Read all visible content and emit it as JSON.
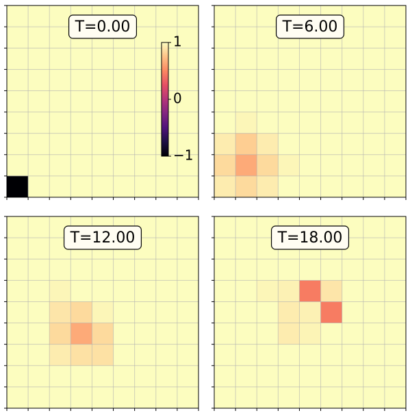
{
  "chart_data": [
    {
      "type": "heatmap",
      "title": "T=0.00",
      "cmap": "magma",
      "clim": [
        -1,
        1
      ],
      "colorbar_ticks": [
        {
          "value": 1,
          "label": "1"
        },
        {
          "value": 0,
          "label": "0"
        },
        {
          "value": -1,
          "label": "−1"
        }
      ],
      "xlim": [
        0,
        9
      ],
      "ylim": [
        0,
        9
      ],
      "xticks": [
        0,
        1,
        2,
        3,
        4,
        5,
        6,
        7,
        8,
        9
      ],
      "yticks": [
        0,
        1,
        2,
        3,
        4,
        5,
        6,
        7,
        8,
        9
      ],
      "grid": true,
      "z": [
        [
          1,
          1,
          1,
          1,
          1,
          1,
          1,
          1,
          1
        ],
        [
          1,
          1,
          1,
          1,
          1,
          1,
          1,
          1,
          1
        ],
        [
          1,
          1,
          1,
          1,
          1,
          1,
          1,
          1,
          1
        ],
        [
          1,
          1,
          1,
          1,
          1,
          1,
          1,
          1,
          1
        ],
        [
          1,
          1,
          1,
          1,
          1,
          1,
          1,
          1,
          1
        ],
        [
          1,
          1,
          1,
          1,
          1,
          1,
          1,
          1,
          1
        ],
        [
          1,
          1,
          1,
          1,
          1,
          1,
          1,
          1,
          1
        ],
        [
          1,
          1,
          1,
          1,
          1,
          1,
          1,
          1,
          1
        ],
        [
          -1,
          1,
          1,
          1,
          1,
          1,
          1,
          1,
          1
        ]
      ]
    },
    {
      "type": "heatmap",
      "title": "T=6.00",
      "cmap": "magma",
      "clim": [
        -1,
        1
      ],
      "xlim": [
        0,
        9
      ],
      "ylim": [
        0,
        9
      ],
      "xticks": [
        0,
        1,
        2,
        3,
        4,
        5,
        6,
        7,
        8,
        9
      ],
      "yticks": [
        0,
        1,
        2,
        3,
        4,
        5,
        6,
        7,
        8,
        9
      ],
      "grid": true,
      "z": [
        [
          1,
          1,
          1,
          1,
          1,
          1,
          1,
          1,
          1
        ],
        [
          1,
          1,
          1,
          1,
          1,
          1,
          1,
          1,
          1
        ],
        [
          1,
          1,
          1,
          1,
          1,
          1,
          1,
          1,
          1
        ],
        [
          1,
          1,
          1,
          1,
          1,
          1,
          1,
          1,
          1
        ],
        [
          1,
          1,
          1,
          1,
          1,
          1,
          1,
          1,
          1
        ],
        [
          1,
          0.97,
          1,
          1,
          1,
          1,
          1,
          1,
          1
        ],
        [
          0.93,
          0.8,
          0.93,
          1,
          1,
          1,
          1,
          1,
          1
        ],
        [
          0.85,
          0.65,
          0.85,
          0.97,
          1,
          1,
          1,
          1,
          1
        ],
        [
          0.93,
          0.85,
          0.93,
          1,
          1,
          1,
          1,
          1,
          1
        ]
      ]
    },
    {
      "type": "heatmap",
      "title": "T=12.00",
      "cmap": "magma",
      "clim": [
        -1,
        1
      ],
      "xlim": [
        0,
        9
      ],
      "ylim": [
        0,
        9
      ],
      "xticks": [
        0,
        1,
        2,
        3,
        4,
        5,
        6,
        7,
        8,
        9
      ],
      "yticks": [
        0,
        1,
        2,
        3,
        4,
        5,
        6,
        7,
        8,
        9
      ],
      "grid": true,
      "z": [
        [
          1,
          1,
          1,
          1,
          1,
          1,
          1,
          1,
          1
        ],
        [
          1,
          1,
          1,
          1,
          1,
          1,
          1,
          1,
          1
        ],
        [
          1,
          1,
          1,
          1,
          1,
          1,
          1,
          1,
          1
        ],
        [
          1,
          1,
          0.97,
          1,
          1,
          1,
          1,
          1,
          1
        ],
        [
          1,
          1,
          0.9,
          0.85,
          0.97,
          1,
          1,
          1,
          1
        ],
        [
          1,
          1,
          0.85,
          0.65,
          0.85,
          1,
          1,
          1,
          1
        ],
        [
          1,
          1,
          0.93,
          0.88,
          0.88,
          1,
          1,
          1,
          1
        ],
        [
          1,
          1,
          1,
          1,
          1,
          1,
          1,
          1,
          1
        ],
        [
          1,
          1,
          1,
          1,
          1,
          1,
          1,
          1,
          1
        ]
      ]
    },
    {
      "type": "heatmap",
      "title": "T=18.00",
      "cmap": "magma",
      "clim": [
        -1,
        1
      ],
      "xlim": [
        0,
        9
      ],
      "ylim": [
        0,
        9
      ],
      "xticks": [
        0,
        1,
        2,
        3,
        4,
        5,
        6,
        7,
        8,
        9
      ],
      "yticks": [
        0,
        1,
        2,
        3,
        4,
        5,
        6,
        7,
        8,
        9
      ],
      "grid": true,
      "z": [
        [
          1,
          1,
          1,
          1,
          1,
          1,
          1,
          1,
          1
        ],
        [
          1,
          1,
          1,
          1,
          1,
          1,
          1,
          1,
          1
        ],
        [
          1,
          1,
          1,
          1,
          1,
          1,
          1,
          1,
          1
        ],
        [
          1,
          1,
          0.97,
          0.95,
          0.45,
          0.9,
          1,
          1,
          1
        ],
        [
          1,
          1,
          1,
          0.93,
          0.95,
          0.45,
          1,
          1,
          1
        ],
        [
          1,
          1,
          1,
          0.93,
          0.96,
          1,
          1,
          1,
          1
        ],
        [
          1,
          1,
          1,
          1,
          1,
          1,
          1,
          1,
          1
        ],
        [
          1,
          1,
          1,
          1,
          1,
          1,
          1,
          1,
          1
        ],
        [
          1,
          1,
          1,
          1,
          1,
          1,
          1,
          1,
          1
        ]
      ]
    }
  ]
}
